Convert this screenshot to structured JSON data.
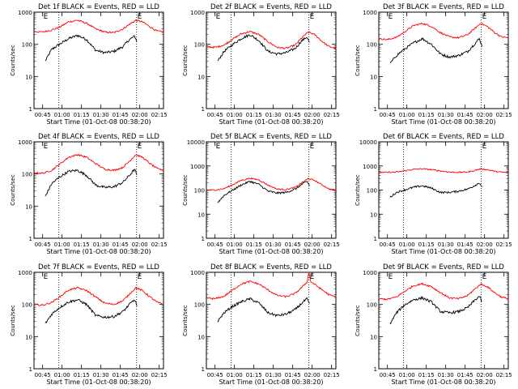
{
  "chart_data": {
    "type": "line",
    "panel_template": "Det {det} BLACK = Events, RED = LLD",
    "ylabel": "Counts/sec",
    "xlabel": "Start Time (01-Oct-08 00:38:20)",
    "ylog": true,
    "x_ticks": [
      "00:45",
      "01:00",
      "01:15",
      "01:30",
      "01:45",
      "02:00",
      "02:15"
    ],
    "x_tick_minutes": [
      45,
      60,
      75,
      90,
      105,
      120,
      135
    ],
    "xlim_minutes": [
      38.33,
      138.33
    ],
    "marker_label": "E",
    "colors": {
      "events": "#000000",
      "lld": "#ff0000"
    },
    "panels": [
      {
        "title": "Det 1f BLACK = Events, RED = LLD",
        "ylim": [
          1,
          1000
        ],
        "y_ticks": [
          "1",
          "10",
          "100",
          "1000"
        ],
        "vlines": [
          57.5,
          117.5
        ],
        "markers": [
          45,
          117.5
        ],
        "series": [
          {
            "name": "Events",
            "color": "#000000",
            "x": [
              47,
              52,
              58,
              65,
              72,
              79,
              86,
              93,
              100,
              107,
              112,
              116,
              118
            ],
            "y": [
              30,
              70,
              100,
              150,
              190,
              140,
              65,
              55,
              60,
              85,
              140,
              180,
              120
            ]
          },
          {
            "name": "LLD",
            "color": "#ff0000",
            "x": [
              38.3,
              45,
              52,
              58,
              65,
              72,
              79,
              86,
              93,
              100,
              107,
              112,
              117,
              122,
              128,
              133,
              138.3
            ],
            "y": [
              250,
              240,
              280,
              340,
              500,
              560,
              450,
              300,
              240,
              230,
              300,
              420,
              560,
              500,
              350,
              260,
              240
            ]
          }
        ]
      },
      {
        "title": "Det 2f BLACK = Events, RED = LLD",
        "ylim": [
          1,
          1000
        ],
        "y_ticks": [
          "1",
          "10",
          "100",
          "1000"
        ],
        "vlines": [
          57.5,
          117.5
        ],
        "markers": [
          45,
          117.5
        ],
        "series": [
          {
            "name": "Events",
            "color": "#000000",
            "x": [
              47,
              52,
              58,
              65,
              72,
              79,
              86,
              93,
              100,
              107,
              112,
              116,
              118
            ],
            "y": [
              30,
              60,
              95,
              150,
              200,
              130,
              60,
              50,
              55,
              75,
              130,
              170,
              110
            ]
          },
          {
            "name": "LLD",
            "color": "#ff0000",
            "x": [
              38.3,
              45,
              52,
              58,
              65,
              72,
              79,
              86,
              93,
              100,
              107,
              112,
              117,
              122,
              128,
              133,
              138.3
            ],
            "y": [
              85,
              80,
              95,
              140,
              210,
              250,
              200,
              120,
              80,
              75,
              95,
              160,
              240,
              200,
              120,
              85,
              75
            ]
          }
        ]
      },
      {
        "title": "Det 3f BLACK = Events, RED = LLD",
        "ylim": [
          1,
          1000
        ],
        "y_ticks": [
          "1",
          "10",
          "100",
          "1000"
        ],
        "vlines": [
          57.5,
          117.5
        ],
        "markers": [
          45,
          117.5
        ],
        "series": [
          {
            "name": "Events",
            "color": "#000000",
            "x": [
              47,
              52,
              58,
              65,
              72,
              79,
              86,
              93,
              100,
              107,
              112,
              116,
              118
            ],
            "y": [
              25,
              45,
              70,
              110,
              150,
              100,
              50,
              40,
              45,
              60,
              100,
              150,
              90
            ]
          },
          {
            "name": "LLD",
            "color": "#ff0000",
            "x": [
              38.3,
              45,
              52,
              58,
              65,
              72,
              79,
              86,
              93,
              100,
              107,
              112,
              117,
              122,
              128,
              133,
              138.3
            ],
            "y": [
              150,
              140,
              165,
              240,
              380,
              450,
              360,
              230,
              170,
              160,
              200,
              300,
              450,
              360,
              230,
              170,
              160
            ]
          }
        ]
      },
      {
        "title": "Det 4f BLACK = Events, RED = LLD",
        "ylim": [
          1,
          1000
        ],
        "y_ticks": [
          "1",
          "10",
          "100",
          "1000"
        ],
        "vlines": [
          57.5,
          117.5
        ],
        "markers": [
          45,
          117.5
        ],
        "series": [
          {
            "name": "Events",
            "color": "#000000",
            "x": [
              47,
              52,
              58,
              65,
              72,
              79,
              86,
              93,
              100,
              107,
              112,
              116,
              118
            ],
            "y": [
              20,
              50,
              80,
              120,
              130,
              90,
              45,
              38,
              40,
              55,
              90,
              140,
              90
            ]
          },
          {
            "name": "LLD",
            "color": "#ff0000",
            "x": [
              38.3,
              45,
              52,
              58,
              65,
              72,
              79,
              86,
              93,
              100,
              107,
              112,
              117,
              122,
              128,
              133,
              138.3
            ],
            "y": [
              110,
              105,
              130,
              200,
              330,
              400,
              330,
              210,
              140,
              130,
              160,
              250,
              400,
              330,
              210,
              150,
              130
            ]
          }
        ]
      },
      {
        "title": "Det 5f BLACK = Events, RED = LLD",
        "ylim": [
          1,
          10000
        ],
        "y_ticks": [
          "1",
          "10",
          "100",
          "1000",
          "10000"
        ],
        "vlines": [
          57.5,
          117.5
        ],
        "markers": [
          45,
          117.5
        ],
        "series": [
          {
            "name": "Events",
            "color": "#000000",
            "x": [
              47,
              52,
              58,
              65,
              72,
              79,
              86,
              93,
              100,
              107,
              112,
              116,
              118
            ],
            "y": [
              30,
              60,
              95,
              160,
              230,
              170,
              90,
              75,
              80,
              110,
              170,
              230,
              150
            ]
          },
          {
            "name": "LLD",
            "color": "#ff0000",
            "x": [
              38.3,
              45,
              52,
              58,
              65,
              72,
              79,
              86,
              93,
              100,
              107,
              112,
              117,
              122,
              128,
              133,
              138.3
            ],
            "y": [
              100,
              100,
              115,
              160,
              250,
              310,
              260,
              160,
              110,
              105,
              130,
              200,
              300,
              250,
              160,
              110,
              100
            ]
          }
        ]
      },
      {
        "title": "Det 6f BLACK = Events, RED = LLD",
        "ylim": [
          1,
          10000
        ],
        "y_ticks": [
          "1",
          "10",
          "100",
          "1000",
          "10000"
        ],
        "vlines": [
          57.5,
          117.5
        ],
        "markers": [
          117.5
        ],
        "series": [
          {
            "name": "Events",
            "color": "#000000",
            "x": [
              47,
              52,
              58,
              65,
              72,
              79,
              86,
              93,
              100,
              107,
              112,
              116,
              118
            ],
            "y": [
              50,
              80,
              100,
              130,
              150,
              120,
              80,
              80,
              90,
              110,
              150,
              200,
              140
            ]
          },
          {
            "name": "LLD",
            "color": "#ff0000",
            "x": [
              38.3,
              45,
              52,
              58,
              65,
              72,
              79,
              86,
              93,
              100,
              107,
              112,
              117,
              122,
              128,
              133,
              138.3
            ],
            "y": [
              550,
              540,
              560,
              620,
              720,
              760,
              700,
              620,
              560,
              540,
              560,
              640,
              760,
              700,
              600,
              550,
              530
            ]
          }
        ]
      },
      {
        "title": "Det 7f BLACK = Events, RED = LLD",
        "ylim": [
          1,
          1000
        ],
        "y_ticks": [
          "1",
          "10",
          "100",
          "1000"
        ],
        "vlines": [
          57.5,
          117.5
        ],
        "markers": [
          45,
          117.5
        ],
        "series": [
          {
            "name": "Events",
            "color": "#000000",
            "x": [
              47,
              52,
              58,
              65,
              72,
              79,
              86,
              93,
              100,
              107,
              112,
              116,
              118
            ],
            "y": [
              25,
              50,
              80,
              120,
              140,
              100,
              45,
              40,
              42,
              60,
              100,
              140,
              90
            ]
          },
          {
            "name": "LLD",
            "color": "#ff0000",
            "x": [
              38.3,
              45,
              52,
              58,
              65,
              72,
              79,
              86,
              93,
              100,
              107,
              112,
              117,
              122,
              128,
              133,
              138.3
            ],
            "y": [
              100,
              95,
              115,
              170,
              280,
              330,
              270,
              170,
              110,
              100,
              130,
              210,
              330,
              270,
              170,
              120,
              100
            ]
          }
        ]
      },
      {
        "title": "Det 8f BLACK = Events, RED = LLD",
        "ylim": [
          1,
          1000
        ],
        "y_ticks": [
          "1",
          "10",
          "100",
          "1000"
        ],
        "vlines": [
          57.5,
          117.5
        ],
        "markers": [
          117.5
        ],
        "series": [
          {
            "name": "Events",
            "color": "#000000",
            "x": [
              47,
              52,
              58,
              65,
              72,
              79,
              86,
              93,
              100,
              107,
              112,
              116,
              118
            ],
            "y": [
              30,
              55,
              85,
              120,
              150,
              110,
              55,
              45,
              50,
              70,
              110,
              150,
              100
            ]
          },
          {
            "name": "LLD",
            "color": "#ff0000",
            "x": [
              38.3,
              45,
              52,
              58,
              65,
              72,
              79,
              86,
              93,
              100,
              107,
              112,
              116,
              117.5,
              119,
              122,
              128,
              133,
              138.3
            ],
            "y": [
              160,
              150,
              180,
              270,
              430,
              520,
              430,
              280,
              190,
              175,
              220,
              340,
              500,
              1000,
              500,
              420,
              280,
              200,
              170
            ]
          }
        ]
      },
      {
        "title": "Det 9f BLACK = Events, RED = LLD",
        "ylim": [
          1,
          1000
        ],
        "y_ticks": [
          "1",
          "10",
          "100",
          "1000"
        ],
        "vlines": [
          57.5,
          117.5
        ],
        "markers": [
          45,
          117.5
        ],
        "series": [
          {
            "name": "Events",
            "color": "#000000",
            "x": [
              47,
              52,
              58,
              65,
              72,
              79,
              86,
              93,
              100,
              107,
              112,
              116,
              118
            ],
            "y": [
              25,
              55,
              95,
              140,
              160,
              120,
              60,
              55,
              60,
              80,
              130,
              180,
              120
            ]
          },
          {
            "name": "LLD",
            "color": "#ff0000",
            "x": [
              38.3,
              45,
              52,
              58,
              65,
              72,
              79,
              86,
              93,
              100,
              107,
              112,
              117,
              122,
              128,
              133,
              138.3
            ],
            "y": [
              150,
              145,
              170,
              250,
              380,
              440,
              360,
              230,
              160,
              150,
              190,
              290,
              430,
              360,
              230,
              170,
              150
            ]
          }
        ]
      }
    ]
  }
}
